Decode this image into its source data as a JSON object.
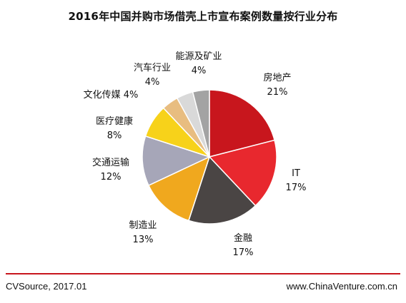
{
  "chart_data": {
    "type": "pie",
    "title": "2016年中国并购市场借壳上市宣布案例数量按行业分布",
    "slices": [
      {
        "label": "房地产",
        "value": 21,
        "value_label": "21%",
        "color": "#c8161d"
      },
      {
        "label": "IT",
        "value": 17,
        "value_label": "17%",
        "color": "#e8282e"
      },
      {
        "label": "金融",
        "value": 17,
        "value_label": "17%",
        "color": "#4a4544"
      },
      {
        "label": "制造业",
        "value": 13,
        "value_label": "13%",
        "color": "#f0a81e"
      },
      {
        "label": "交通运输",
        "value": 12,
        "value_label": "12%",
        "color": "#a6a6b8"
      },
      {
        "label": "医疗健康",
        "value": 8,
        "value_label": "8%",
        "color": "#f7d21a"
      },
      {
        "label": "文化传媒",
        "value": 4,
        "value_label": "4%",
        "color": "#e8bd80"
      },
      {
        "label": "汽车行业",
        "value": 4,
        "value_label": "4%",
        "color": "#d9d9d9"
      },
      {
        "label": "能源及矿业",
        "value": 4,
        "value_label": "4%",
        "color": "#a3a3a3"
      }
    ]
  },
  "footer": {
    "source": "CVSource, 2017.01",
    "website": "www.ChinaVenture.com.cn"
  },
  "colors": {
    "rule": "#c8161d"
  }
}
